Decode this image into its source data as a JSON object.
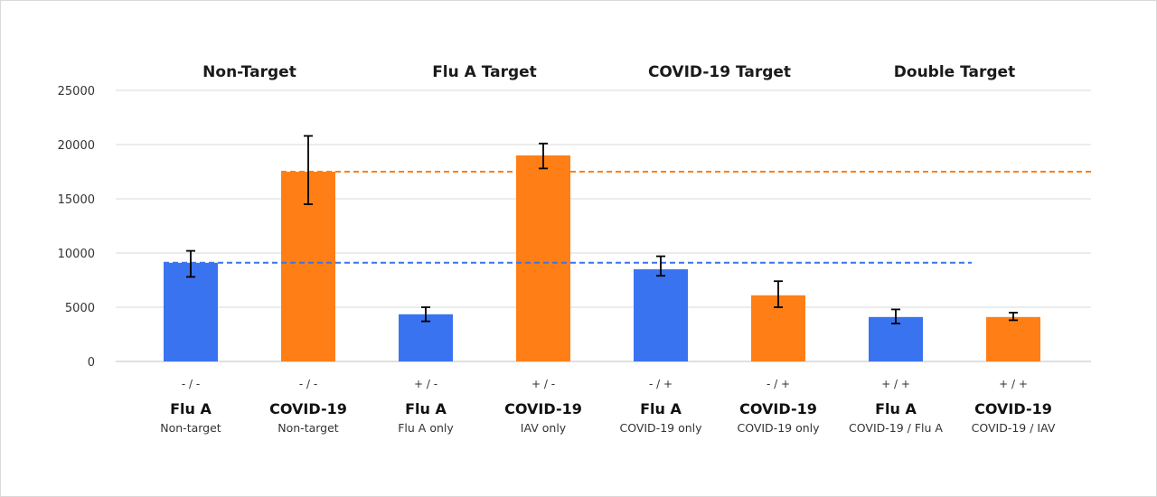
{
  "chart_data": {
    "type": "bar",
    "ylim": [
      0,
      25000
    ],
    "yticks": [
      0,
      5000,
      10000,
      15000,
      20000,
      25000
    ],
    "grid": true,
    "colors": {
      "Flu A": "#3a73f0",
      "COVID-19": "#ff7f16"
    },
    "groups": [
      {
        "title": "Non-Target"
      },
      {
        "title": "Flu A Target"
      },
      {
        "title": "COVID-19 Target"
      },
      {
        "title": "Double Target"
      }
    ],
    "bars": [
      {
        "category": "Flu A",
        "sign": "- / -",
        "sub": "Non-target",
        "value": 9100,
        "err_low": 7800,
        "err_high": 10200,
        "series": "Flu A"
      },
      {
        "category": "COVID-19",
        "sign": "- / -",
        "sub": "Non-target",
        "value": 17500,
        "err_low": 14500,
        "err_high": 20800,
        "series": "COVID-19"
      },
      {
        "category": "Flu A",
        "sign": "+ / -",
        "sub": "Flu A only",
        "value": 4350,
        "err_low": 3700,
        "err_high": 5000,
        "series": "Flu A"
      },
      {
        "category": "COVID-19",
        "sign": "+ / -",
        "sub": "IAV only",
        "value": 19000,
        "err_low": 17800,
        "err_high": 20100,
        "series": "COVID-19"
      },
      {
        "category": "Flu A",
        "sign": "- / +",
        "sub": "COVID-19 only",
        "value": 8500,
        "err_low": 7900,
        "err_high": 9700,
        "series": "Flu A"
      },
      {
        "category": "COVID-19",
        "sign": "- / +",
        "sub": "COVID-19 only",
        "value": 6100,
        "err_low": 5000,
        "err_high": 7400,
        "series": "COVID-19"
      },
      {
        "category": "Flu A",
        "sign": "+ / +",
        "sub": "COVID-19 / Flu A",
        "value": 4100,
        "err_low": 3500,
        "err_high": 4800,
        "series": "Flu A"
      },
      {
        "category": "COVID-19",
        "sign": "+ / +",
        "sub": "COVID-19 / IAV",
        "value": 4100,
        "err_low": 3800,
        "err_high": 4500,
        "series": "COVID-19"
      }
    ],
    "reference_lines": [
      {
        "series": "Flu A",
        "value": 9100
      },
      {
        "series": "COVID-19",
        "value": 17500
      }
    ]
  }
}
